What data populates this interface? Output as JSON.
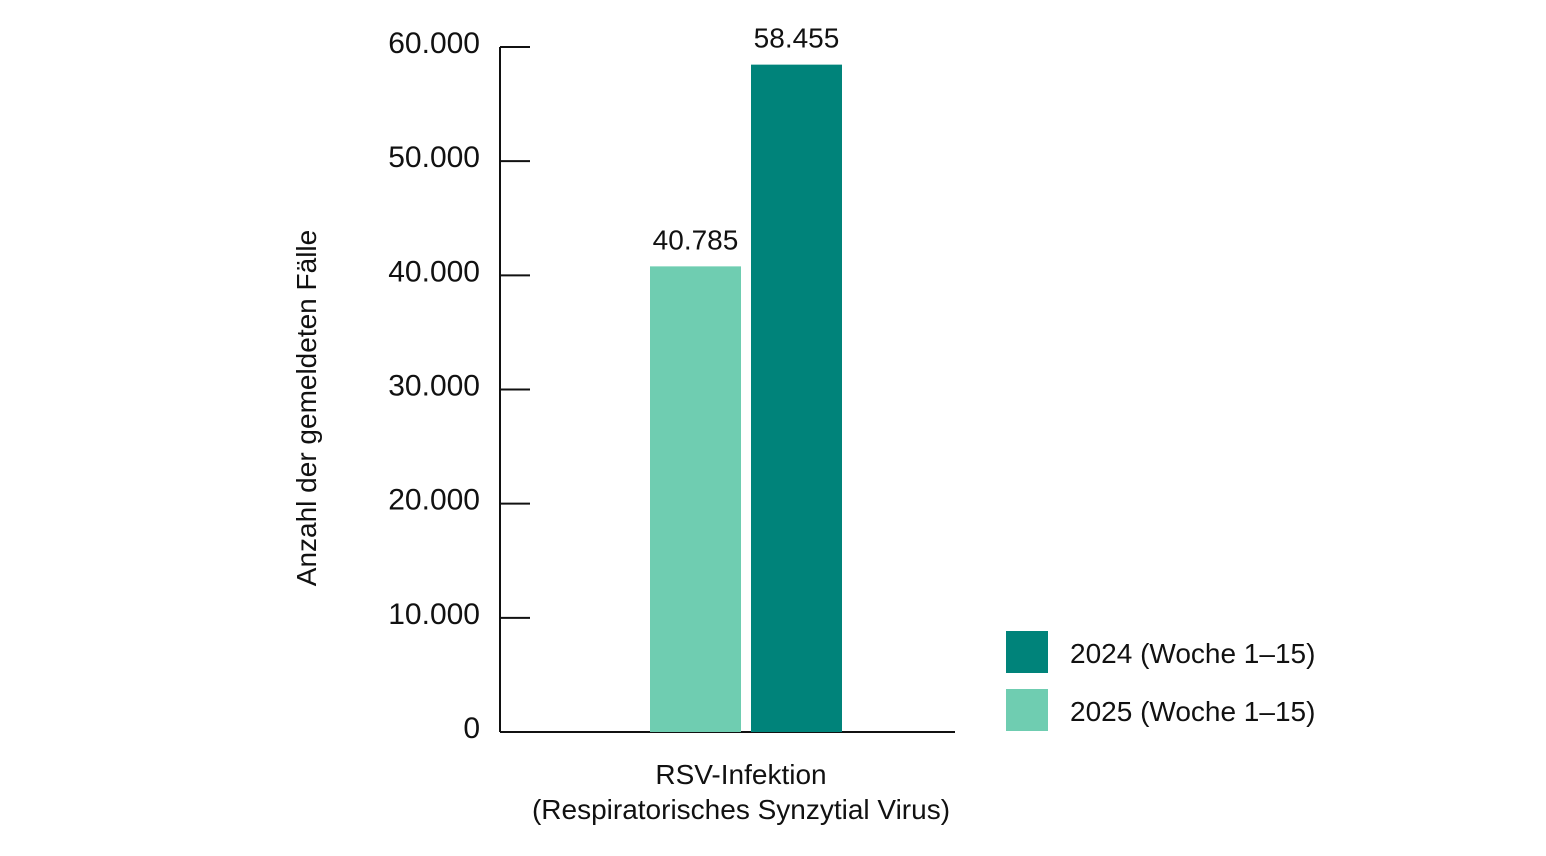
{
  "chart_data": {
    "type": "bar",
    "title": "",
    "xlabel": "",
    "ylabel": "Anzahl der gemeldeten Fälle",
    "categories": [
      "RSV-Infektion|(Respiratorisches Synzytial Virus)"
    ],
    "category_lines": [
      [
        "RSV-Infektion",
        "(Respiratorisches Synzytial Virus)"
      ]
    ],
    "series": [
      {
        "name": "2025 (Woche 1–15)",
        "values": [
          40785
        ],
        "value_labels": [
          "40.785"
        ],
        "color": "#6fcdb1"
      },
      {
        "name": "2024 (Woche 1–15)",
        "values": [
          58455
        ],
        "value_labels": [
          "58.455"
        ],
        "color": "#00837a"
      }
    ],
    "ylim": [
      0,
      60000
    ],
    "yticks": [
      0,
      10000,
      20000,
      30000,
      40000,
      50000,
      60000
    ],
    "ytick_labels": [
      "0",
      "10.000",
      "20.000",
      "30.000",
      "40.000",
      "50.000",
      "60.000"
    ],
    "legend_order": [
      "2024 (Woche 1–15)",
      "2025 (Woche 1–15)"
    ],
    "legend_position": "bottom-right",
    "grid": false
  }
}
